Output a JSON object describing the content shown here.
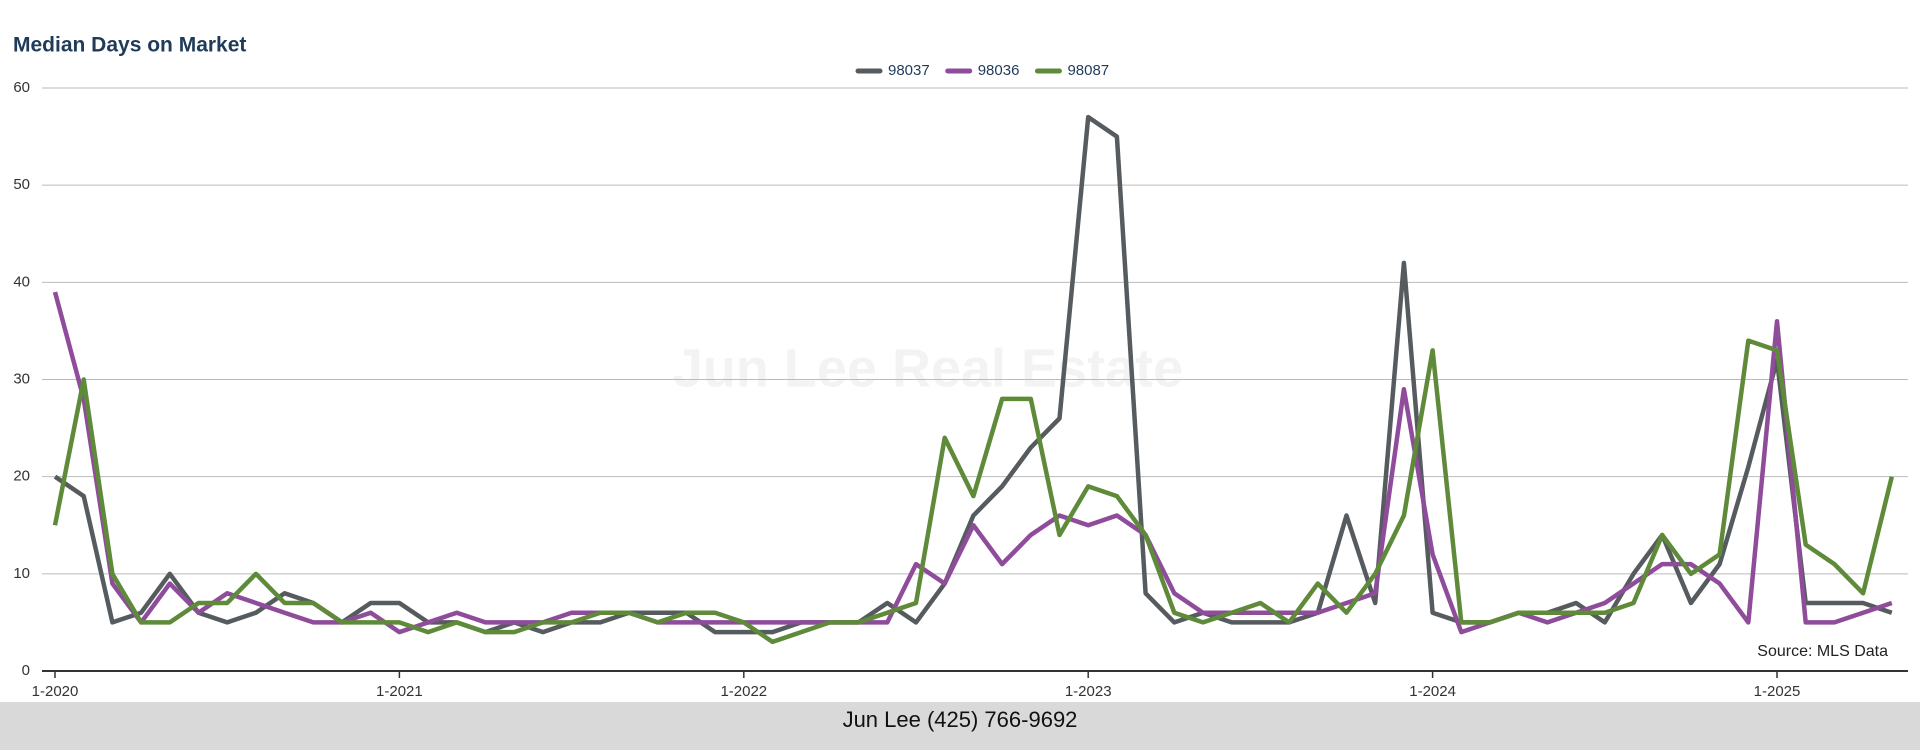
{
  "chart_data": {
    "type": "line",
    "title": "Median Days on Market",
    "categories": [
      "1-2020",
      null,
      null,
      null,
      null,
      null,
      null,
      null,
      null,
      null,
      null,
      null,
      "1-2021",
      null,
      null,
      null,
      null,
      null,
      null,
      null,
      null,
      null,
      null,
      null,
      "1-2022",
      null,
      null,
      null,
      null,
      null,
      null,
      null,
      null,
      null,
      null,
      null,
      "1-2023",
      null,
      null,
      null,
      null,
      null,
      null,
      null,
      null,
      null,
      null,
      null,
      "1-2024",
      null,
      null,
      null,
      null,
      null,
      null,
      null,
      null,
      null,
      null,
      null,
      "1-2025",
      null,
      null,
      null,
      null
    ],
    "series": [
      {
        "name": "98037",
        "color": "#555b5e",
        "values": [
          20,
          18,
          5,
          6,
          10,
          6,
          5,
          6,
          8,
          7,
          5,
          7,
          7,
          5,
          5,
          4,
          5,
          4,
          5,
          5,
          6,
          6,
          6,
          4,
          4,
          4,
          5,
          5,
          5,
          7,
          5,
          9,
          16,
          19,
          23,
          26,
          57,
          55,
          8,
          5,
          6,
          5,
          5,
          5,
          6,
          16,
          7,
          42,
          6,
          5,
          5,
          6,
          6,
          7,
          5,
          10,
          14,
          7,
          11,
          21,
          32,
          7,
          7,
          7,
          6
        ]
      },
      {
        "name": "98036",
        "color": "#8e4c9b",
        "values": [
          39,
          28,
          9,
          5,
          9,
          6,
          8,
          7,
          6,
          5,
          5,
          6,
          4,
          5,
          6,
          5,
          5,
          5,
          6,
          6,
          6,
          5,
          5,
          5,
          5,
          5,
          5,
          5,
          5,
          5,
          11,
          9,
          15,
          11,
          14,
          16,
          15,
          16,
          14,
          8,
          6,
          6,
          6,
          6,
          6,
          7,
          8,
          29,
          12,
          4,
          5,
          6,
          5,
          6,
          7,
          9,
          11,
          11,
          9,
          5,
          36,
          5,
          5,
          6,
          7
        ]
      },
      {
        "name": "98087",
        "color": "#5e8a3a",
        "values": [
          15,
          30,
          10,
          5,
          5,
          7,
          7,
          10,
          7,
          7,
          5,
          5,
          5,
          4,
          5,
          4,
          4,
          5,
          5,
          6,
          6,
          5,
          6,
          6,
          5,
          3,
          4,
          5,
          5,
          6,
          7,
          24,
          18,
          28,
          28,
          14,
          19,
          18,
          14,
          6,
          5,
          6,
          7,
          5,
          9,
          6,
          10,
          16,
          33,
          5,
          5,
          6,
          6,
          6,
          6,
          7,
          14,
          10,
          12,
          34,
          33,
          13,
          11,
          8,
          20
        ]
      }
    ],
    "ylim": [
      0,
      60
    ],
    "yticks": [
      0,
      10,
      20,
      30,
      40,
      50,
      60
    ],
    "grid": true,
    "source": "Source: MLS Data",
    "watermark": "Jun Lee Real Estate"
  },
  "footer": "Jun Lee (425) 766-9692"
}
